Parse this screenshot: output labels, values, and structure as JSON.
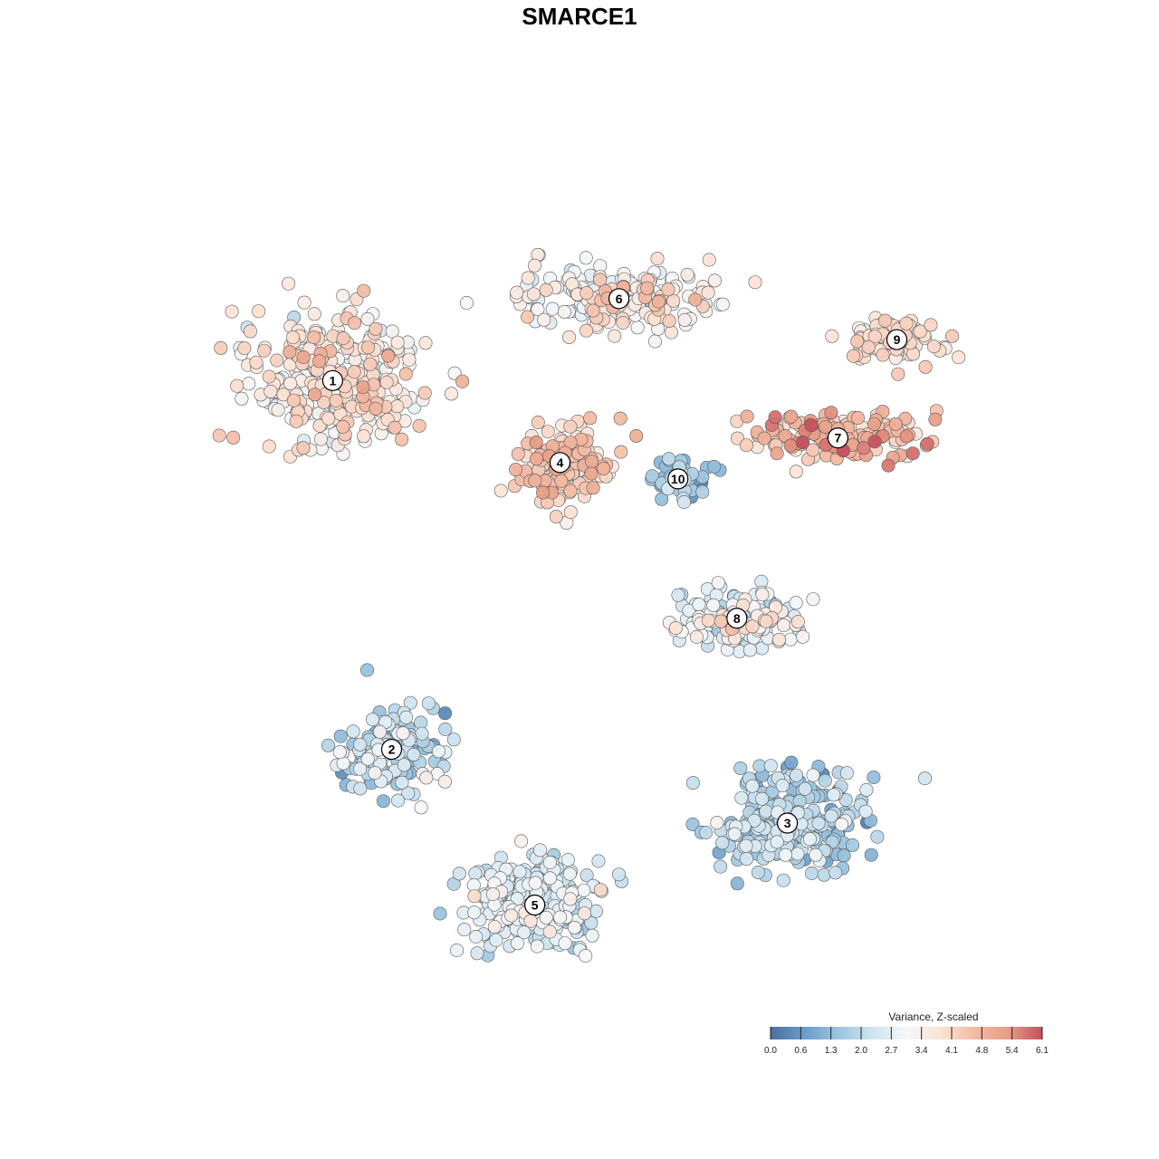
{
  "chart_data": {
    "type": "scatter",
    "title": "SMARCE1",
    "xlabel": "",
    "ylabel": "",
    "grid": false,
    "axes_visible": false,
    "point_count_note": "thousands of overlapping cells, generated per cluster from cluster centers and spreads",
    "color_scale": {
      "title": "Variance, Z-scaled",
      "min": 0.0,
      "max": 6.1,
      "ticks": [
        "0.0",
        "0.6",
        "1.3",
        "2.0",
        "2.7",
        "3.4",
        "4.1",
        "4.8",
        "5.4",
        "6.1"
      ],
      "colors": [
        "#4b6fa0",
        "#6a9cca",
        "#9cc5df",
        "#cfe3ef",
        "#f4f7fa",
        "#fbe3d6",
        "#f3bba4",
        "#e79c86",
        "#c6505f"
      ],
      "legend_position": "bottom-right"
    },
    "series": [
      {
        "cluster": "1",
        "x": 0.18,
        "y": 0.74,
        "mean_value": 3.6,
        "spread": 1.0
      },
      {
        "cluster": "2",
        "x": 0.25,
        "y": 0.29,
        "mean_value": 2.0,
        "spread": 1.0
      },
      {
        "cluster": "3",
        "x": 0.72,
        "y": 0.2,
        "mean_value": 1.8,
        "spread": 0.9
      },
      {
        "cluster": "4",
        "x": 0.45,
        "y": 0.64,
        "mean_value": 4.2,
        "spread": 0.9
      },
      {
        "cluster": "5",
        "x": 0.42,
        "y": 0.1,
        "mean_value": 2.4,
        "spread": 0.9
      },
      {
        "cluster": "6",
        "x": 0.52,
        "y": 0.84,
        "mean_value": 3.4,
        "spread": 1.0
      },
      {
        "cluster": "7",
        "x": 0.78,
        "y": 0.67,
        "mean_value": 4.6,
        "spread": 1.1
      },
      {
        "cluster": "8",
        "x": 0.66,
        "y": 0.45,
        "mean_value": 2.8,
        "spread": 1.1
      },
      {
        "cluster": "9",
        "x": 0.85,
        "y": 0.79,
        "mean_value": 3.8,
        "spread": 0.8
      },
      {
        "cluster": "10",
        "x": 0.59,
        "y": 0.62,
        "mean_value": 1.5,
        "spread": 0.9
      }
    ],
    "cluster_labels": [
      "1",
      "2",
      "3",
      "4",
      "5",
      "6",
      "7",
      "8",
      "9",
      "10"
    ]
  }
}
